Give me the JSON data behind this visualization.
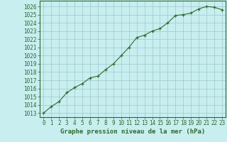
{
  "x": [
    0,
    1,
    2,
    3,
    4,
    5,
    6,
    7,
    8,
    9,
    10,
    11,
    12,
    13,
    14,
    15,
    16,
    17,
    18,
    19,
    20,
    21,
    22,
    23
  ],
  "y": [
    1013.0,
    1013.8,
    1014.4,
    1015.5,
    1016.1,
    1016.6,
    1017.3,
    1017.5,
    1018.3,
    1019.0,
    1020.0,
    1021.0,
    1022.2,
    1022.5,
    1023.0,
    1023.3,
    1024.0,
    1024.9,
    1025.0,
    1025.2,
    1025.7,
    1026.0,
    1025.9,
    1025.6
  ],
  "line_color": "#2d6a2d",
  "marker": "+",
  "bg_color": "#c8eef0",
  "grid_color": "#9dc8c8",
  "xlabel": "Graphe pression niveau de la mer (hPa)",
  "ylabel_ticks": [
    1013,
    1014,
    1015,
    1016,
    1017,
    1018,
    1019,
    1020,
    1021,
    1022,
    1023,
    1024,
    1025,
    1026
  ],
  "xlim": [
    -0.5,
    23.5
  ],
  "ylim": [
    1012.5,
    1026.7
  ],
  "tick_label_color": "#2d6a2d",
  "spine_color": "#2d6a2d",
  "font_size_ticks": 5.5,
  "font_size_xlabel": 6.5
}
